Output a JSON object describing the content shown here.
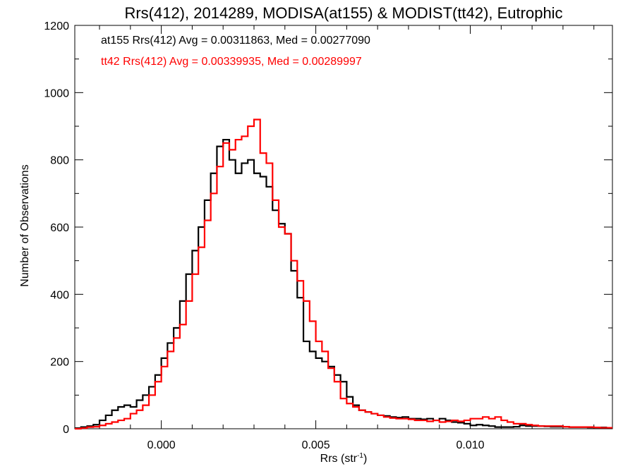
{
  "chart_data": {
    "type": "line",
    "style": "step histogram",
    "title": "Rrs(412), 2014289, MODISA(at155) & MODIST(tt42), Eutrophic",
    "xlabel": "Rrs (str",
    "xlabel_sup": "-1",
    "xlabel_close": ")",
    "ylabel": "Number of Observations",
    "xlim": [
      -0.0028,
      0.0146
    ],
    "ylim": [
      0,
      1200
    ],
    "xticks": [
      0.0,
      0.005,
      0.01
    ],
    "xtick_labels": [
      "0.000",
      "0.005",
      "0.010"
    ],
    "yticks": [
      0,
      200,
      400,
      600,
      800,
      1000,
      1200
    ],
    "ytick_labels": [
      "0",
      "200",
      "400",
      "600",
      "800",
      "1000",
      "1200"
    ],
    "grid": false,
    "annotations": [
      {
        "text": "at155 Rrs(412) Avg = 0.00311863, Med = 0.00277090",
        "color": "#000000"
      },
      {
        "text": "tt42 Rrs(412) Avg = 0.00339935, Med = 0.00289997",
        "color": "#ff0000"
      }
    ],
    "series": [
      {
        "color": "#000000",
        "x": [
          -0.0028,
          -0.0026,
          -0.0024,
          -0.0022,
          -0.002,
          -0.0018,
          -0.0016,
          -0.0014,
          -0.0012,
          -0.001,
          -0.0008,
          -0.0006,
          -0.0004,
          -0.0002,
          0.0,
          0.0002,
          0.0004,
          0.0006,
          0.0008,
          0.001,
          0.0012,
          0.0014,
          0.0016,
          0.0018,
          0.002,
          0.0022,
          0.0024,
          0.0026,
          0.0028,
          0.003,
          0.0032,
          0.0034,
          0.0036,
          0.0038,
          0.004,
          0.0042,
          0.0044,
          0.0046,
          0.0048,
          0.005,
          0.0052,
          0.0054,
          0.0056,
          0.0058,
          0.006,
          0.0062,
          0.0064,
          0.0066,
          0.0068,
          0.007,
          0.0072,
          0.0074,
          0.0076,
          0.0078,
          0.008,
          0.0082,
          0.0084,
          0.0086,
          0.0088,
          0.009,
          0.0092,
          0.0094,
          0.0096,
          0.0098,
          0.01,
          0.0102,
          0.0104,
          0.0106,
          0.0108,
          0.011,
          0.0112,
          0.0114,
          0.0116,
          0.0118,
          0.012,
          0.0122,
          0.0124,
          0.0126,
          0.0128,
          0.013,
          0.0132,
          0.0134,
          0.0136,
          0.0138,
          0.014,
          0.0142,
          0.0144
        ],
        "y": [
          2,
          5,
          8,
          12,
          25,
          40,
          55,
          65,
          70,
          65,
          85,
          100,
          125,
          160,
          210,
          255,
          300,
          380,
          460,
          530,
          600,
          680,
          760,
          840,
          860,
          800,
          760,
          790,
          800,
          760,
          750,
          720,
          650,
          610,
          580,
          470,
          390,
          260,
          230,
          210,
          200,
          185,
          160,
          140,
          95,
          70,
          55,
          50,
          45,
          40,
          38,
          35,
          33,
          35,
          30,
          30,
          28,
          30,
          25,
          30,
          25,
          20,
          18,
          15,
          10,
          12,
          10,
          8,
          5,
          5,
          5,
          6,
          10,
          8,
          8,
          8,
          7,
          6,
          6,
          6,
          5,
          5,
          5,
          4,
          4,
          4,
          3
        ]
      },
      {
        "color": "#ff0000",
        "x": [
          -0.0028,
          -0.0026,
          -0.0024,
          -0.0022,
          -0.002,
          -0.0018,
          -0.0016,
          -0.0014,
          -0.0012,
          -0.001,
          -0.0008,
          -0.0006,
          -0.0004,
          -0.0002,
          0.0,
          0.0002,
          0.0004,
          0.0006,
          0.0008,
          0.001,
          0.0012,
          0.0014,
          0.0016,
          0.0018,
          0.002,
          0.0022,
          0.0024,
          0.0026,
          0.0028,
          0.003,
          0.0032,
          0.0034,
          0.0036,
          0.0038,
          0.004,
          0.0042,
          0.0044,
          0.0046,
          0.0048,
          0.005,
          0.0052,
          0.0054,
          0.0056,
          0.0058,
          0.006,
          0.0062,
          0.0064,
          0.0066,
          0.0068,
          0.007,
          0.0072,
          0.0074,
          0.0076,
          0.0078,
          0.008,
          0.0082,
          0.0084,
          0.0086,
          0.0088,
          0.009,
          0.0092,
          0.0094,
          0.0096,
          0.0098,
          0.01,
          0.0102,
          0.0104,
          0.0106,
          0.0108,
          0.011,
          0.0112,
          0.0114,
          0.0116,
          0.0118,
          0.012,
          0.0122,
          0.0124,
          0.0126,
          0.0128,
          0.013,
          0.0132,
          0.0134,
          0.0136,
          0.0138,
          0.014,
          0.0142,
          0.0144
        ],
        "y": [
          0,
          2,
          5,
          6,
          10,
          15,
          20,
          25,
          30,
          45,
          55,
          70,
          100,
          140,
          185,
          230,
          270,
          310,
          380,
          460,
          540,
          620,
          700,
          780,
          850,
          830,
          860,
          870,
          900,
          920,
          820,
          790,
          680,
          600,
          580,
          500,
          440,
          380,
          320,
          260,
          230,
          180,
          140,
          90,
          75,
          65,
          55,
          50,
          45,
          40,
          35,
          32,
          30,
          30,
          28,
          25,
          25,
          22,
          25,
          20,
          22,
          25,
          22,
          25,
          30,
          30,
          35,
          30,
          35,
          25,
          20,
          15,
          15,
          12,
          10,
          8,
          8,
          8,
          8,
          6,
          5,
          5,
          5,
          5,
          4,
          3,
          3
        ]
      }
    ]
  }
}
